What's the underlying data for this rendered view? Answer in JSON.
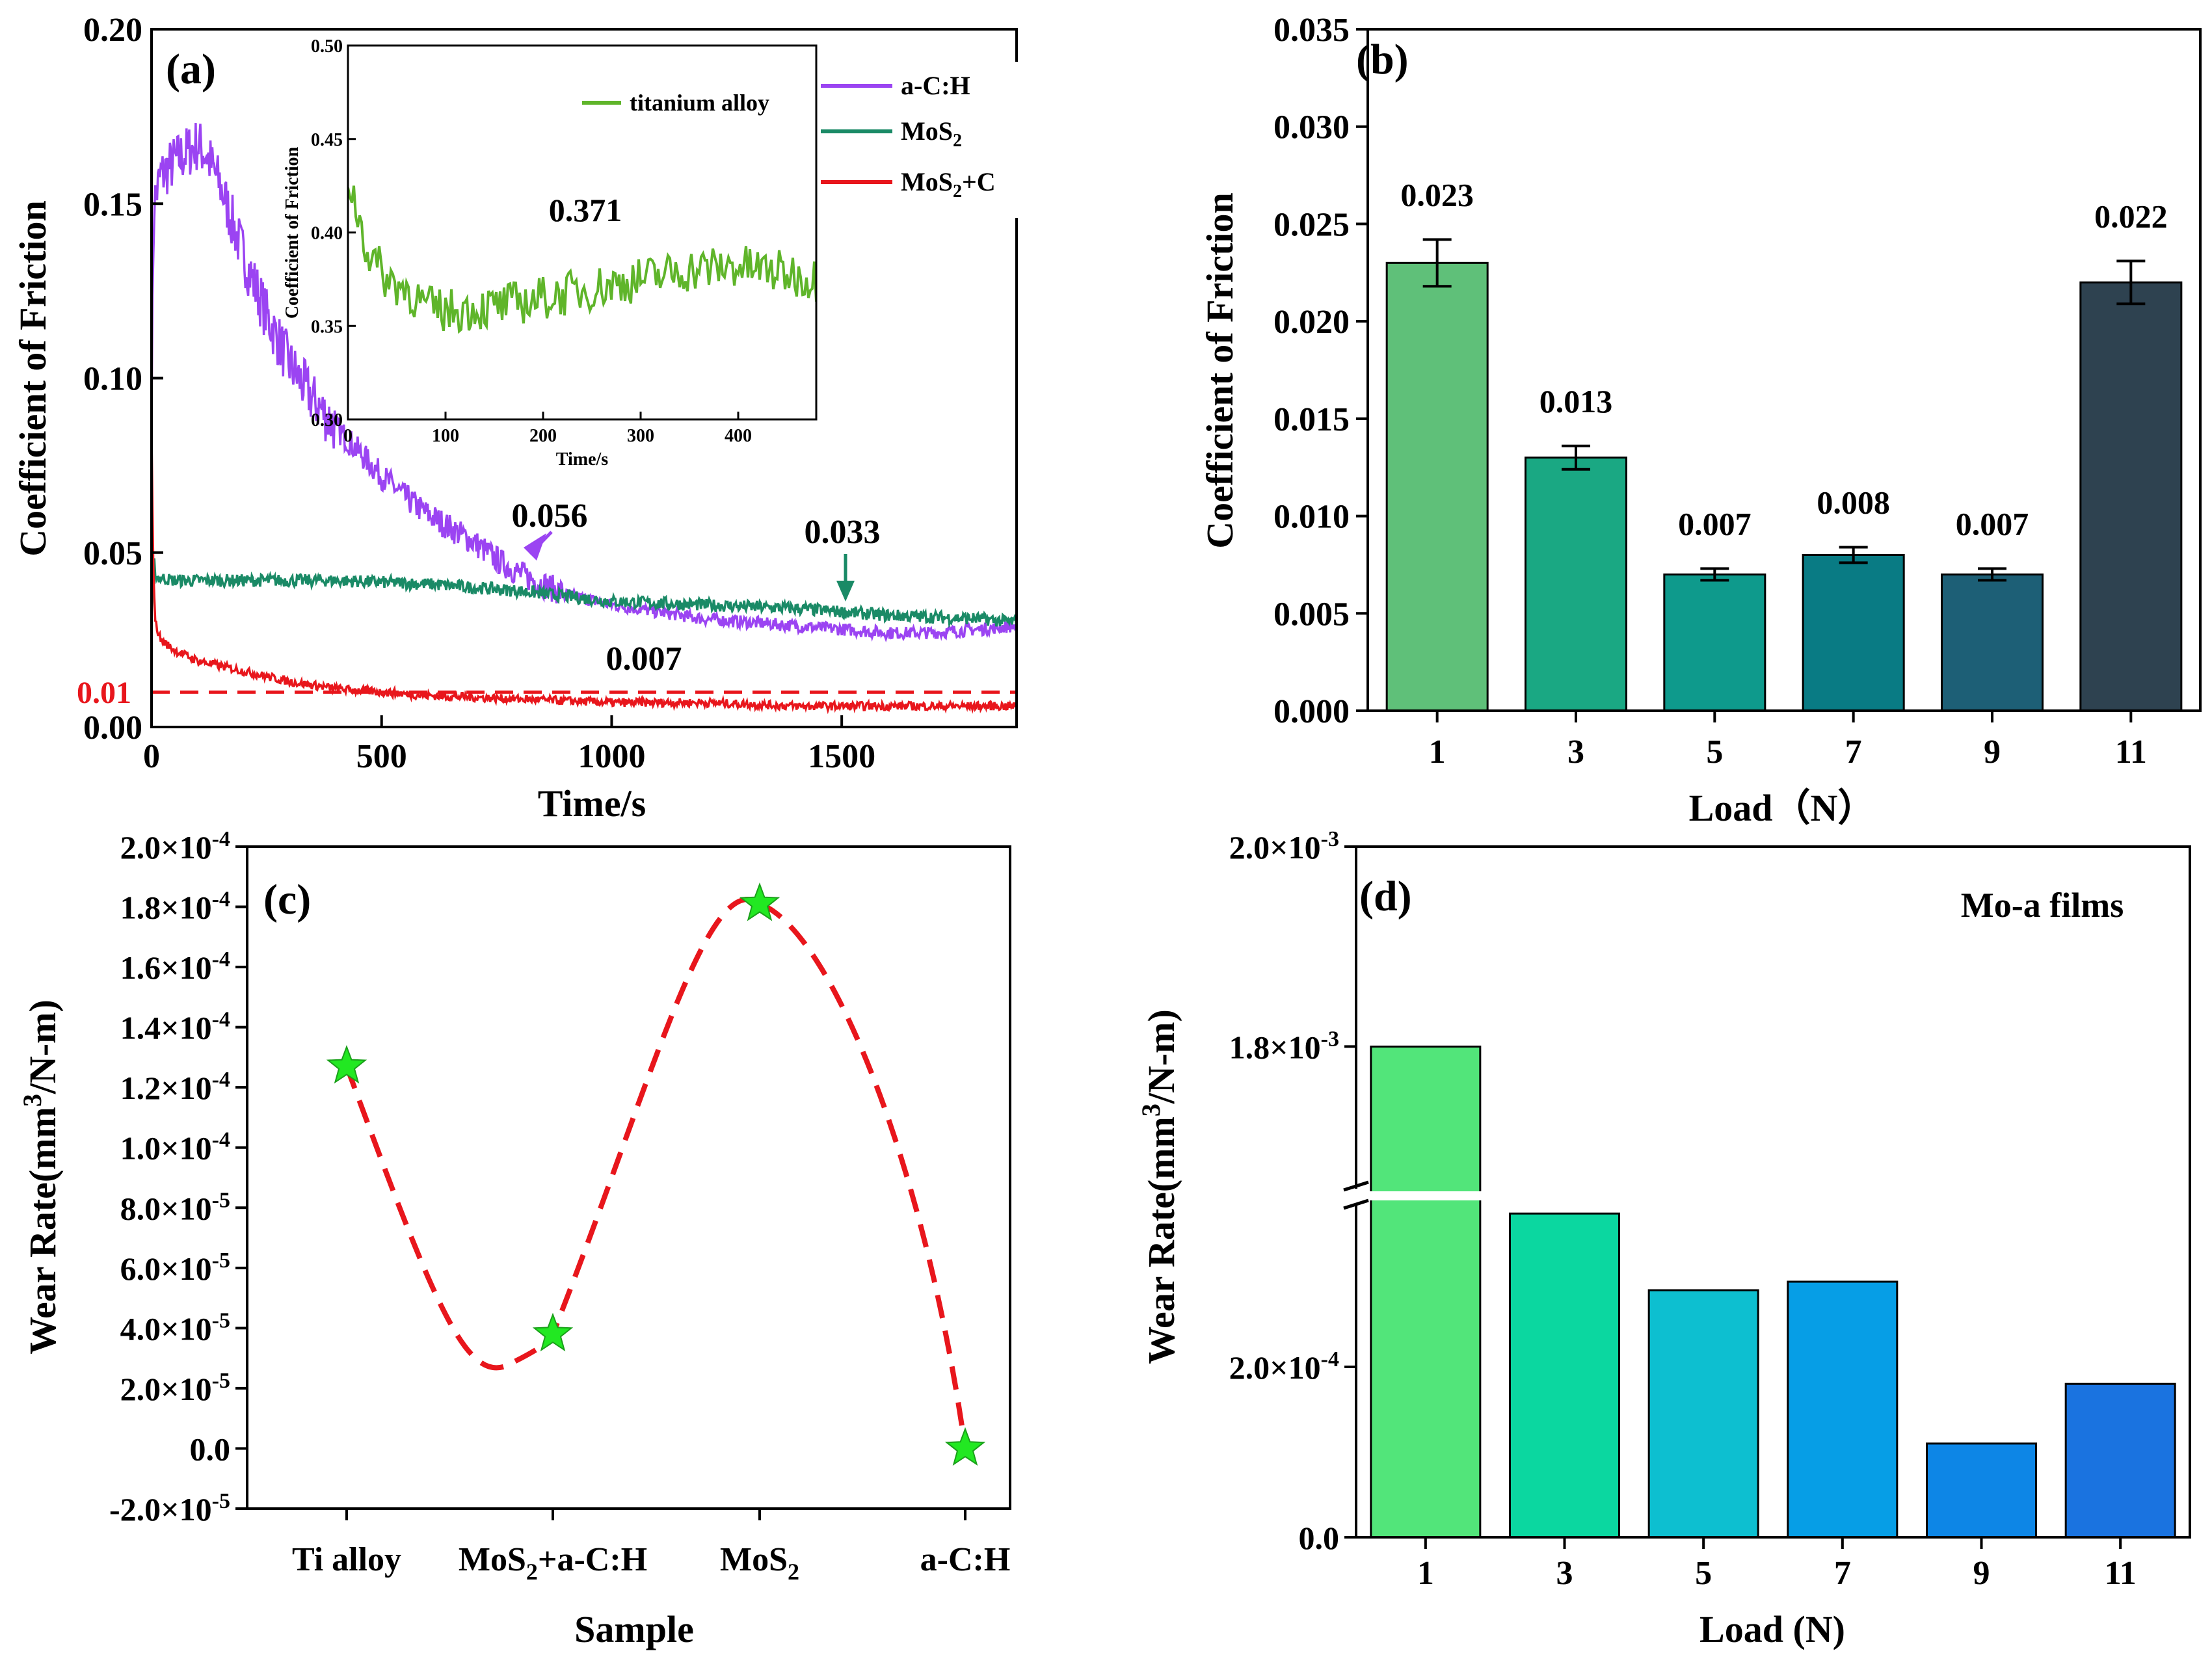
{
  "colors": {
    "aCH": "#9b44f2",
    "MoS2": "#1a8a66",
    "MoS2C": "#e8161c",
    "ti": "#5fb52a",
    "dash_c": "#e8161c",
    "star": "#22e822",
    "b_bars": [
      "#5fc079",
      "#1aa883",
      "#0e9a8c",
      "#097b84",
      "#1d5f76",
      "#2e4250"
    ],
    "d_bars": [
      "#52e57a",
      "#0bd7a0",
      "#0dbfd0",
      "#069ee6",
      "#0d86e6",
      "#1a73e0"
    ]
  },
  "chart_data": [
    {
      "id": "a",
      "type": "line",
      "panel_label": "(a)",
      "xlabel": "Time/s",
      "ylabel": "Coefficient of Friction",
      "xlim": [
        0,
        1880
      ],
      "ylim": [
        0,
        0.2
      ],
      "xticks": [
        "0",
        "500",
        "1000",
        "1500"
      ],
      "yticks": [
        "0.00",
        "0.05",
        "0.10",
        "0.15",
        "0.20"
      ],
      "series": [
        {
          "name": "a-C:H",
          "x": [
            0,
            5,
            20,
            50,
            80,
            100,
            120,
            150,
            200,
            250,
            300,
            350,
            400,
            450,
            500,
            550,
            600,
            650,
            700,
            750,
            800,
            850,
            900,
            1000,
            1100,
            1200,
            1300,
            1400,
            1500,
            1600,
            1700,
            1800,
            1880
          ],
          "y": [
            0.095,
            0.15,
            0.158,
            0.162,
            0.165,
            0.167,
            0.164,
            0.155,
            0.135,
            0.118,
            0.104,
            0.094,
            0.086,
            0.079,
            0.072,
            0.066,
            0.061,
            0.057,
            0.053,
            0.048,
            0.044,
            0.041,
            0.038,
            0.035,
            0.033,
            0.031,
            0.03,
            0.029,
            0.028,
            0.027,
            0.027,
            0.028,
            0.029
          ]
        },
        {
          "name": "MoS2",
          "x": [
            0,
            5,
            10,
            50,
            200,
            400,
            600,
            800,
            1000,
            1200,
            1400,
            1600,
            1800,
            1880
          ],
          "y": [
            0.03,
            0.048,
            0.043,
            0.042,
            0.042,
            0.042,
            0.041,
            0.039,
            0.036,
            0.035,
            0.034,
            0.032,
            0.031,
            0.03
          ]
        },
        {
          "name": "MoS2+C",
          "x": [
            0,
            3,
            8,
            20,
            50,
            100,
            200,
            300,
            400,
            500,
            600,
            800,
            1000,
            1200,
            1400,
            1600,
            1800,
            1880
          ],
          "y": [
            0.085,
            0.05,
            0.03,
            0.025,
            0.022,
            0.019,
            0.016,
            0.013,
            0.011,
            0.01,
            0.009,
            0.008,
            0.007,
            0.007,
            0.006,
            0.006,
            0.006,
            0.006
          ]
        }
      ],
      "legend": [
        {
          "label": "a-C:H",
          "color_key": "aCH"
        },
        {
          "label": "MoS",
          "sub": "2",
          "color_key": "MoS2"
        },
        {
          "label": "MoS",
          "sub": "2",
          "suffix": "+C",
          "color_key": "MoS2C"
        }
      ],
      "annotations": [
        {
          "text": "0.056",
          "at": [
            780,
            0.04
          ]
        },
        {
          "text": "0.033",
          "at": [
            1500,
            0.033
          ]
        },
        {
          "text": "0.007",
          "at": [
            1050,
            0.013
          ]
        }
      ],
      "reference_line": {
        "y": 0.01,
        "label": "0.01"
      },
      "inset": {
        "xlabel": "Time/s",
        "ylabel": "Coefficient of Friction",
        "xlim": [
          0,
          480
        ],
        "ylim": [
          0.3,
          0.5
        ],
        "xticks": [
          "0",
          "100",
          "200",
          "300",
          "400"
        ],
        "yticks": [
          "0.30",
          "0.35",
          "0.40",
          "0.45",
          "0.50"
        ],
        "legend": "titanium alloy",
        "value_label": "0.371",
        "series": {
          "name": "titanium alloy",
          "x": [
            0,
            10,
            20,
            40,
            60,
            80,
            100,
            150,
            200,
            250,
            300,
            350,
            400,
            450,
            480
          ],
          "y": [
            0.43,
            0.41,
            0.39,
            0.375,
            0.37,
            0.36,
            0.358,
            0.36,
            0.365,
            0.37,
            0.375,
            0.38,
            0.382,
            0.378,
            0.375
          ]
        }
      }
    },
    {
      "id": "b",
      "type": "bar",
      "panel_label": "(b)",
      "xlabel": "Load（N）",
      "ylabel": "Coefficient of Friction",
      "categories": [
        "1",
        "3",
        "5",
        "7",
        "9",
        "11"
      ],
      "values": [
        0.023,
        0.013,
        0.007,
        0.008,
        0.007,
        0.022
      ],
      "errors": [
        0.0012,
        0.0006,
        0.0003,
        0.0004,
        0.0003,
        0.0011
      ],
      "data_labels": [
        "0.023",
        "0.013",
        "0.007",
        "0.008",
        "0.007",
        "0.022"
      ],
      "ylim": [
        0,
        0.035
      ],
      "yticks": [
        "0.000",
        "0.005",
        "0.010",
        "0.015",
        "0.020",
        "0.025",
        "0.030",
        "0.035"
      ]
    },
    {
      "id": "c",
      "type": "scatter",
      "panel_label": "(c)",
      "xlabel": "Sample",
      "ylabel": "Wear Rate(mm",
      "ylabel_sup": "3",
      "ylabel_end": "/N-m)",
      "categories": [
        {
          "main": "Ti alloy"
        },
        {
          "main": "MoS",
          "sub": "2",
          "suffix": "+a-C:H"
        },
        {
          "main": "MoS",
          "sub": "2"
        },
        {
          "main": "a-C:H"
        }
      ],
      "values": [
        0.000127,
        3.8e-05,
        0.000181,
        0
      ],
      "ylim": [
        -2e-05,
        0.0002
      ],
      "yticks": [
        {
          "m": "-2.0",
          "e": "-5"
        },
        {
          "m": "0.0",
          "e": ""
        },
        {
          "m": "2.0",
          "e": "-5"
        },
        {
          "m": "4.0",
          "e": "-5"
        },
        {
          "m": "6.0",
          "e": "-5"
        },
        {
          "m": "8.0",
          "e": "-5"
        },
        {
          "m": "1.0",
          "e": "-4"
        },
        {
          "m": "1.2",
          "e": "-4"
        },
        {
          "m": "1.4",
          "e": "-4"
        },
        {
          "m": "1.6",
          "e": "-4"
        },
        {
          "m": "1.8",
          "e": "-4"
        },
        {
          "m": "2.0",
          "e": "-4"
        }
      ]
    },
    {
      "id": "d",
      "type": "bar",
      "panel_label": "(d)",
      "title": "Mo-a films",
      "xlabel": "Load (N)",
      "ylabel": "Wear Rate(mm",
      "ylabel_sup": "3",
      "ylabel_end": "/N-m)",
      "categories": [
        "1",
        "3",
        "5",
        "7",
        "9",
        "11"
      ],
      "values": [
        0.0018,
        0.00038,
        0.00029,
        0.0003,
        0.00011,
        0.00018
      ],
      "yticks": [
        {
          "m": "0.0",
          "e": ""
        },
        {
          "m": "2.0",
          "e": "-4"
        },
        {
          "m": "1.8",
          "e": "-3"
        },
        {
          "m": "2.0",
          "e": "-3"
        }
      ],
      "axis_break": true
    }
  ]
}
